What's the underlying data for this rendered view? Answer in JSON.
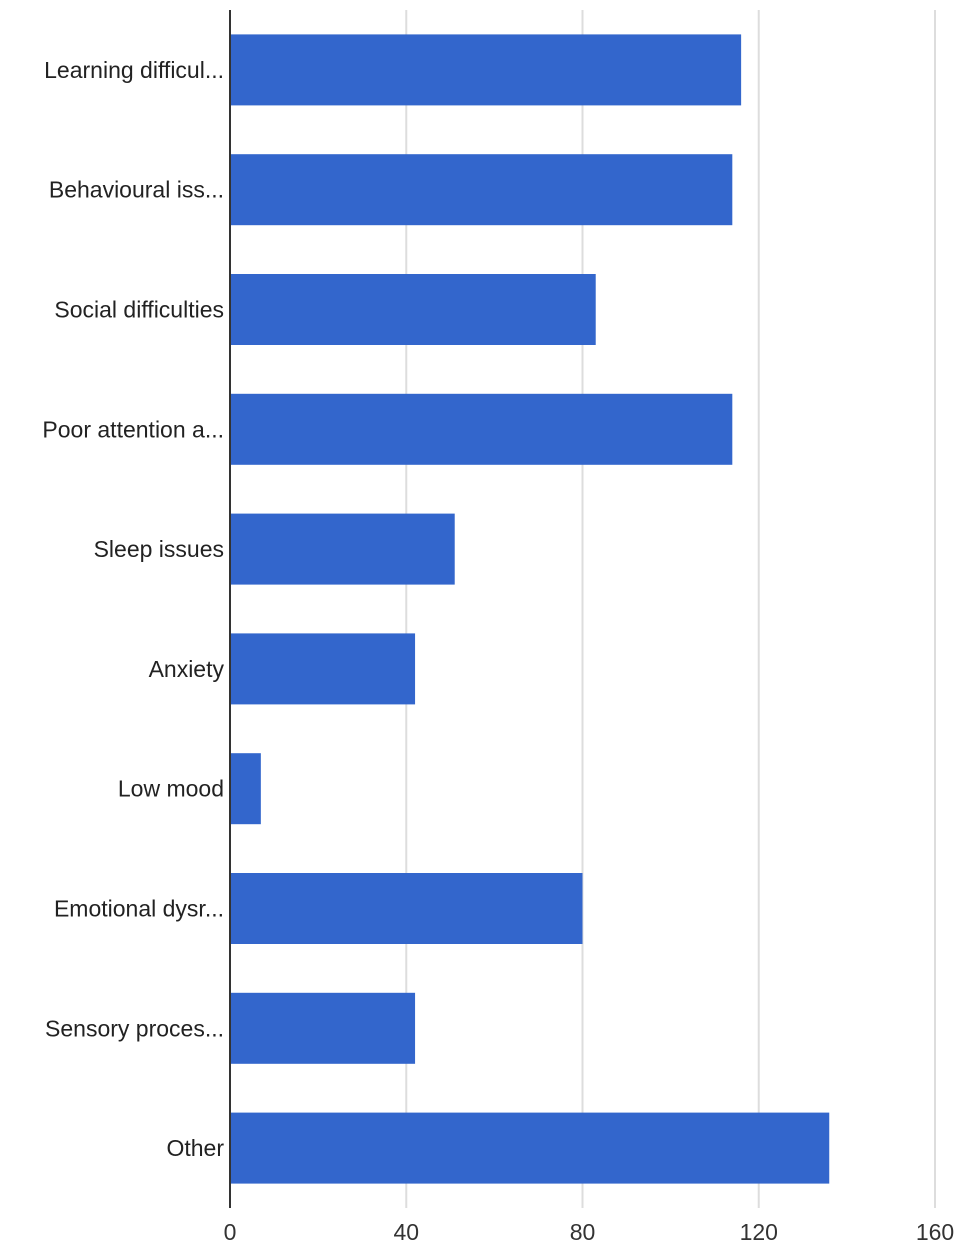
{
  "chart_data": {
    "type": "bar",
    "orientation": "horizontal",
    "categories": [
      "Learning difficul...",
      "Behavioural iss...",
      "Social difficulties",
      "Poor attention a...",
      "Sleep issues",
      "Anxiety",
      "Low mood",
      "Emotional dysr...",
      "Sensory proces...",
      "Other"
    ],
    "series": [
      {
        "values": [
          116,
          114,
          83,
          114,
          51,
          42,
          7,
          80,
          42,
          136
        ]
      }
    ],
    "xlim": [
      0,
      160
    ],
    "xticks": [
      0,
      40,
      80,
      120,
      160
    ],
    "grid": true,
    "legend": "none",
    "title": "",
    "xlabel": "",
    "ylabel": ""
  },
  "colors": {
    "bar": "#3366cc",
    "grid": "#dddddd",
    "axis": "#333333"
  }
}
